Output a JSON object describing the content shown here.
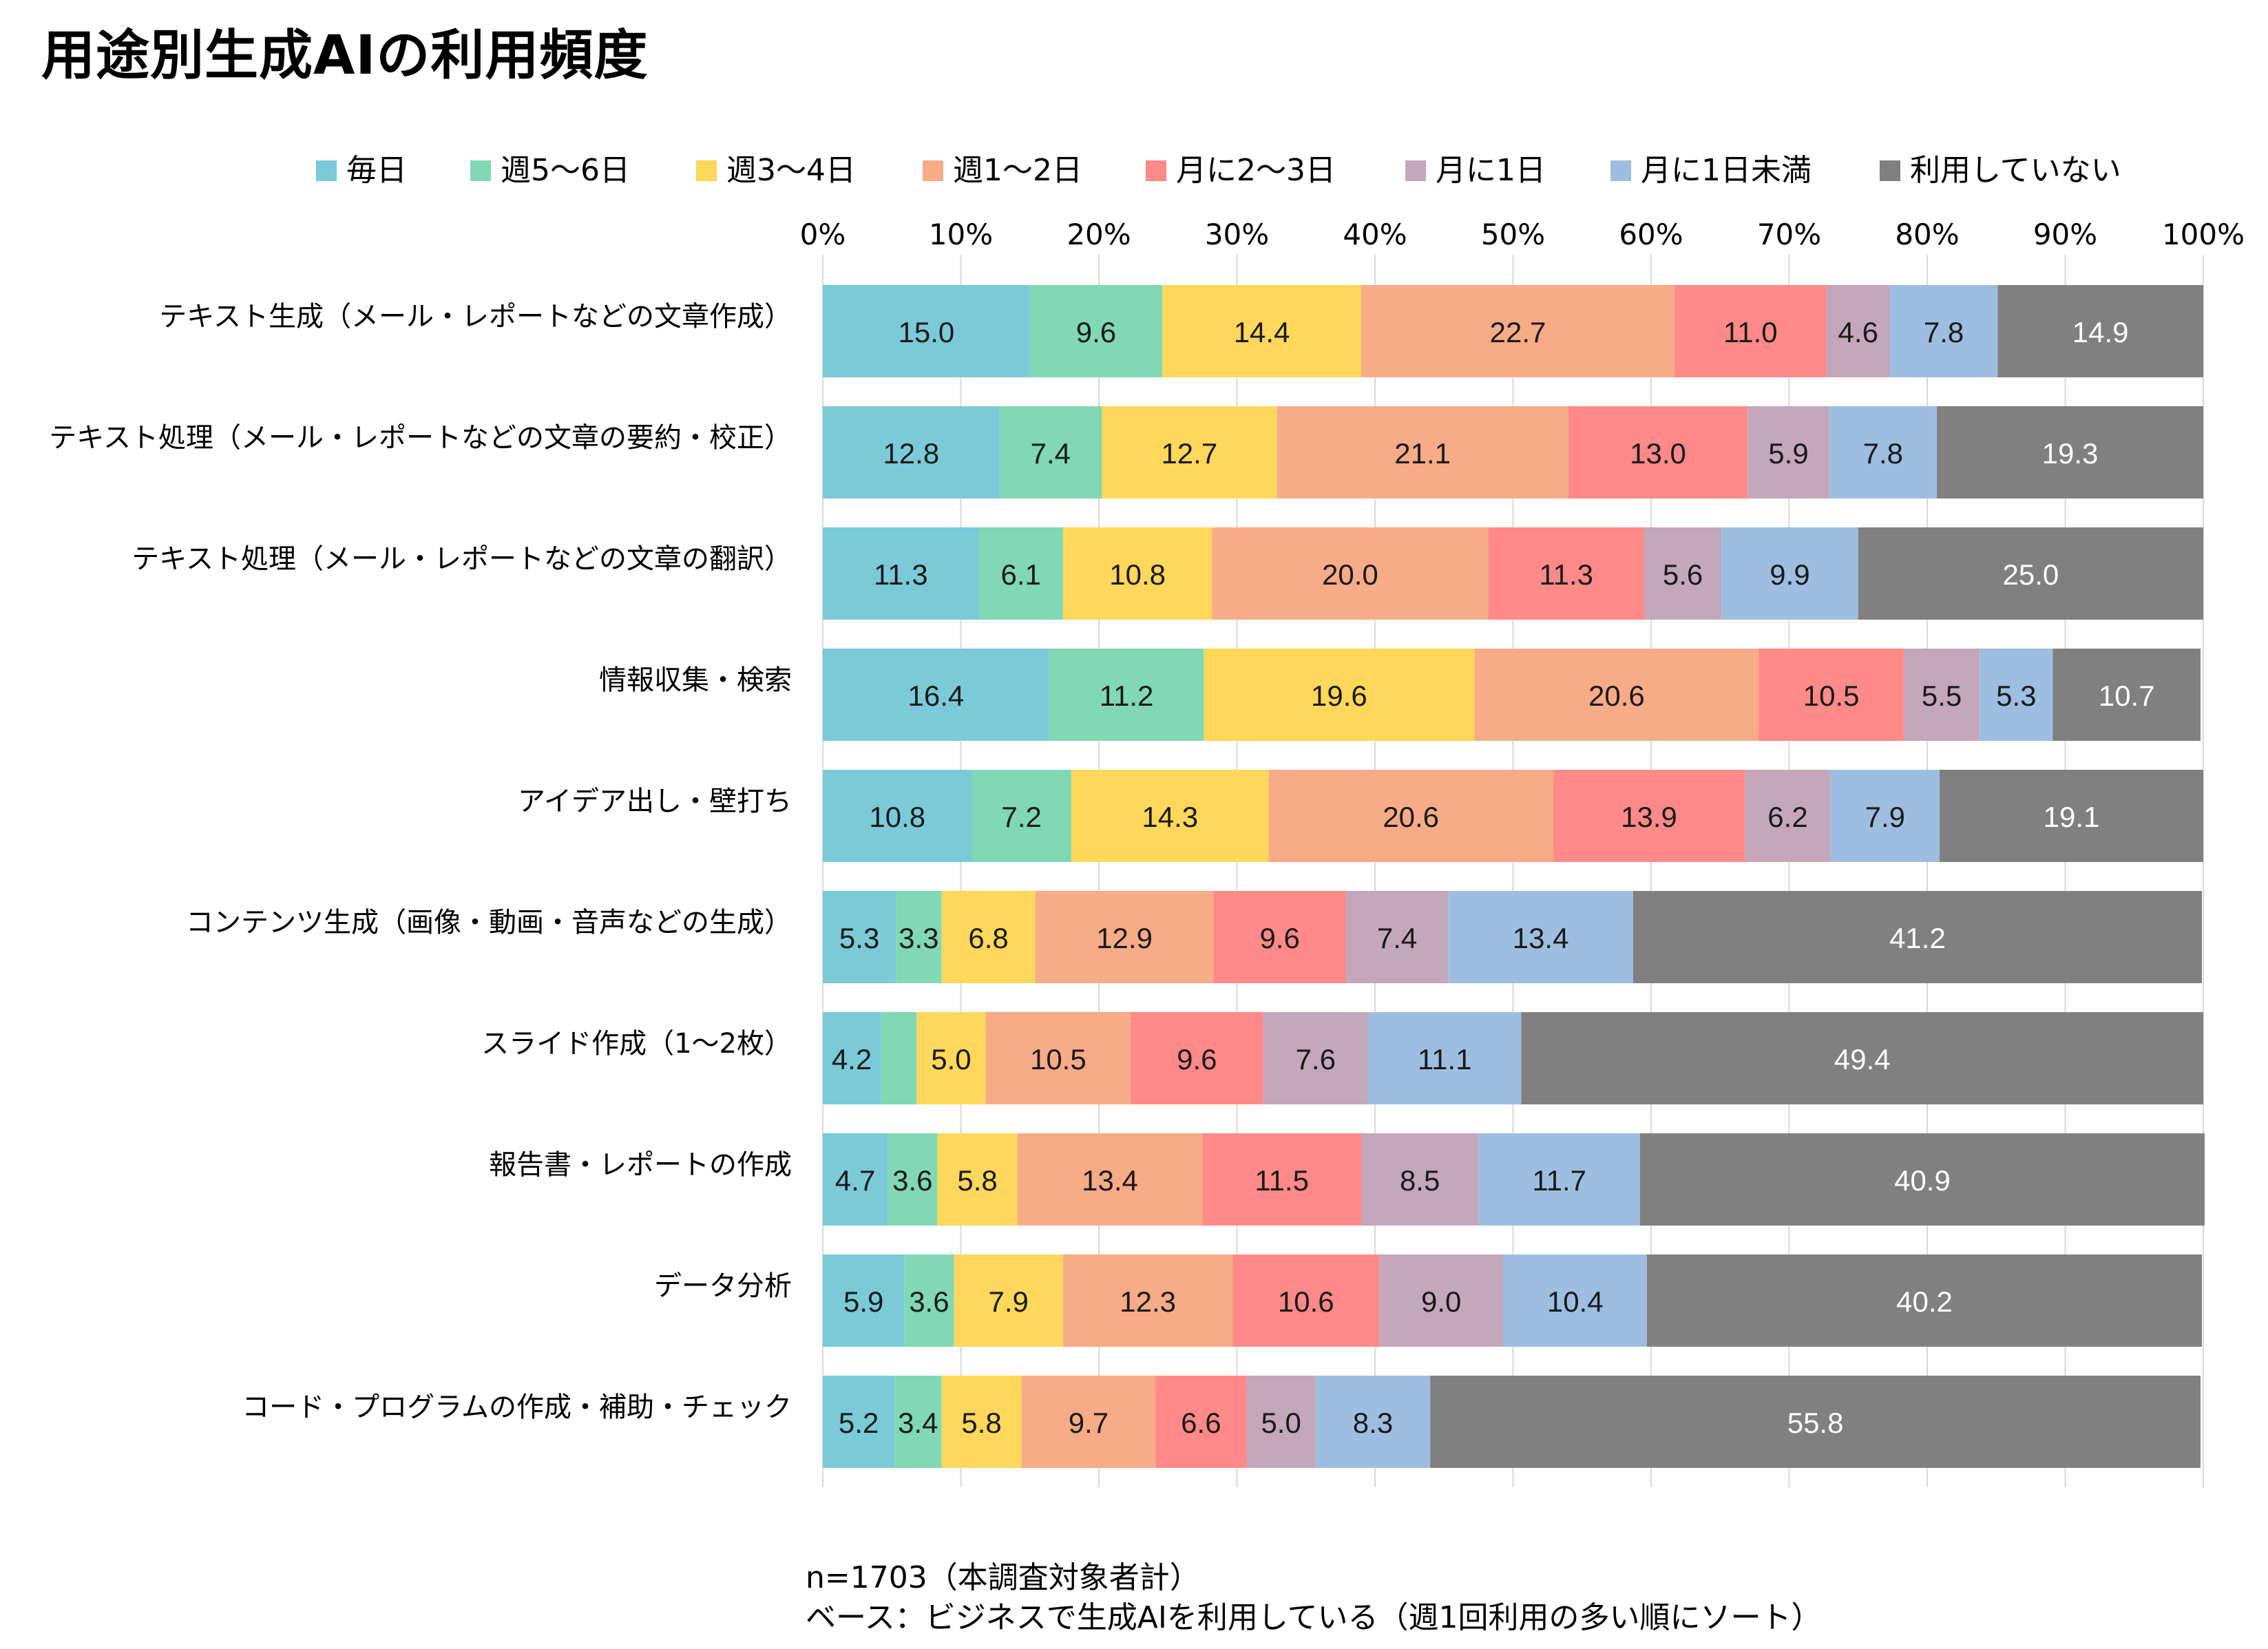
{
  "title": "用途別生成AIの利用頻度",
  "notes": [
    "n=1703（本調査対象者計）",
    "ベース：ビジネスで生成AIを利用している（週1回利用の多い順にソート）"
  ],
  "colors": {
    "毎日": "#7BCAD8",
    "週5〜6日": "#80D8B5",
    "週3〜4日": "#FED75B",
    "週1〜2日": "#F7AB87",
    "月に2〜3日": "#FF8A88",
    "月に1日": "#C4A7BB",
    "月に1日未満": "#9DBEE0",
    "利用していない": "#808080"
  },
  "chart_data": {
    "type": "bar",
    "orientation": "horizontal",
    "stacked": true,
    "title": "用途別生成AIの利用頻度",
    "xlim": [
      0,
      100
    ],
    "x_ticks": [
      "0%",
      "10%",
      "20%",
      "30%",
      "40%",
      "50%",
      "60%",
      "70%",
      "80%",
      "90%",
      "100%"
    ],
    "legend_position": "top",
    "grid": true,
    "categories": [
      "テキスト生成（メール・レポートなどの文章作成）",
      "テキスト処理（メール・レポートなどの文章の要約・校正）",
      "テキスト処理（メール・レポートなどの文章の翻訳）",
      "情報収集・検索",
      "アイデア出し・壁打ち",
      "コンテンツ生成（画像・動画・音声などの生成）",
      "スライド作成（1〜2枚）",
      "報告書・レポートの作成",
      "データ分析",
      "コード・プログラムの作成・補助・チェック"
    ],
    "series": [
      {
        "name": "毎日",
        "values": [
          15.0,
          12.8,
          11.3,
          16.4,
          10.8,
          5.3,
          4.2,
          4.7,
          5.9,
          5.2
        ]
      },
      {
        "name": "週5〜6日",
        "values": [
          9.6,
          7.4,
          6.1,
          11.2,
          7.2,
          3.3,
          2.6,
          3.6,
          3.6,
          3.4
        ]
      },
      {
        "name": "週3〜4日",
        "values": [
          14.4,
          12.7,
          10.8,
          19.6,
          14.3,
          6.8,
          5.0,
          5.8,
          7.9,
          5.8
        ]
      },
      {
        "name": "週1〜2日",
        "values": [
          22.7,
          21.1,
          20.0,
          20.6,
          20.6,
          12.9,
          10.5,
          13.4,
          12.3,
          9.7
        ]
      },
      {
        "name": "月に2〜3日",
        "values": [
          11.0,
          13.0,
          11.3,
          10.5,
          13.9,
          9.6,
          9.6,
          11.5,
          10.6,
          6.6
        ]
      },
      {
        "name": "月に1日",
        "values": [
          4.6,
          5.9,
          5.6,
          5.5,
          6.2,
          7.4,
          7.6,
          8.5,
          9.0,
          5.0
        ]
      },
      {
        "name": "月に1日未満",
        "values": [
          7.8,
          7.8,
          9.9,
          5.3,
          7.9,
          13.4,
          11.1,
          11.7,
          10.4,
          8.3
        ]
      },
      {
        "name": "利用していない",
        "values": [
          14.9,
          19.3,
          25.0,
          10.7,
          19.1,
          41.2,
          49.4,
          40.9,
          40.2,
          55.8
        ]
      }
    ]
  }
}
